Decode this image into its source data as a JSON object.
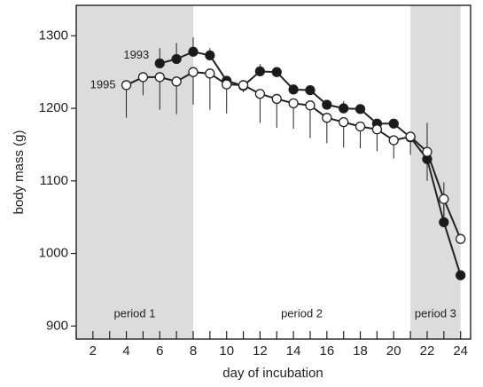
{
  "chart_data": {
    "type": "line",
    "x_label": "day of incubation",
    "y_label": "body mass (g)",
    "xlim": [
      1,
      24.6
    ],
    "ylim": [
      882,
      1342
    ],
    "xticks": [
      2,
      4,
      6,
      8,
      10,
      12,
      14,
      16,
      18,
      20,
      22,
      24
    ],
    "xminor_ticks": [
      1,
      3,
      5,
      7,
      9,
      11,
      13,
      15,
      17,
      19,
      21,
      23
    ],
    "yticks": [
      900,
      1000,
      1100,
      1200,
      1300
    ],
    "periods": [
      {
        "label": "period 1",
        "start": 1,
        "end": 8,
        "shaded": true
      },
      {
        "label": "period 2",
        "start": 8,
        "end": 21,
        "shaded": false
      },
      {
        "label": "period 3",
        "start": 21,
        "end": 24,
        "shaded": true
      }
    ],
    "shade_color": "#dcdcdc",
    "series": [
      {
        "name": "1993",
        "color": "#1a1a1a",
        "error_side": "up",
        "x": [
          6,
          7,
          8,
          9,
          10,
          11,
          12,
          13,
          14,
          15,
          16,
          17,
          18,
          19,
          20,
          21,
          22,
          23,
          24
        ],
        "values": [
          1262,
          1268,
          1278,
          1273,
          1238,
          1231,
          1251,
          1250,
          1226,
          1225,
          1205,
          1200,
          1199,
          1179,
          1179,
          1160,
          1130,
          1043,
          970
        ],
        "errors": [
          21,
          22,
          20,
          10,
          5,
          8,
          10,
          5,
          5,
          5,
          5,
          10,
          5,
          5,
          5,
          5,
          50,
          55,
          5
        ]
      },
      {
        "name": "1995",
        "color": "#ffffff",
        "error_side": "down",
        "x": [
          4,
          5,
          6,
          7,
          8,
          9,
          10,
          11,
          12,
          13,
          14,
          15,
          16,
          17,
          18,
          19,
          20,
          21,
          22,
          23,
          24
        ],
        "values": [
          1232,
          1243,
          1243,
          1237,
          1250,
          1248,
          1233,
          1232,
          1220,
          1213,
          1207,
          1204,
          1187,
          1181,
          1175,
          1171,
          1156,
          1161,
          1140,
          1075,
          1020
        ],
        "errors": [
          45,
          25,
          45,
          45,
          45,
          50,
          40,
          10,
          40,
          40,
          35,
          45,
          35,
          35,
          30,
          30,
          25,
          25,
          40,
          30,
          5
        ]
      }
    ]
  }
}
